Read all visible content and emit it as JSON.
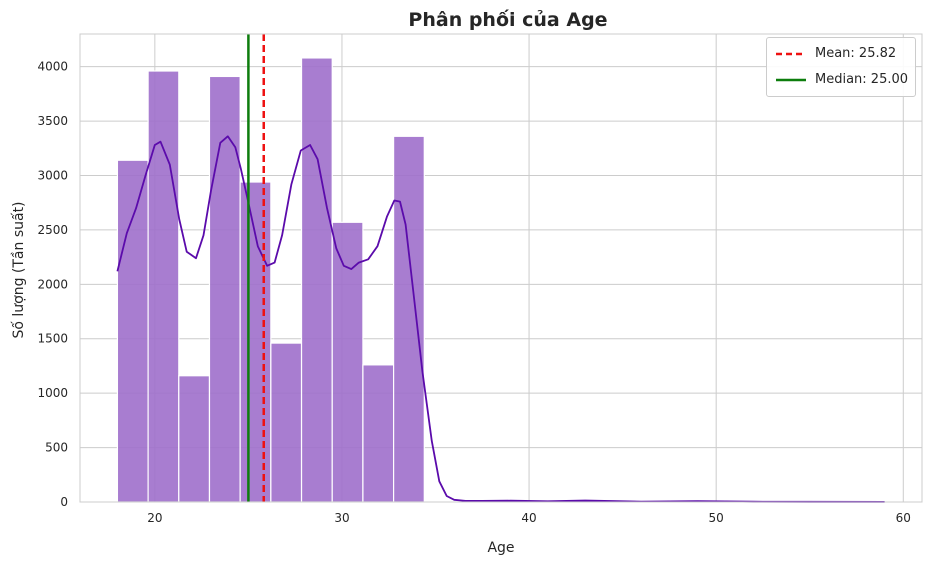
{
  "chart_data": {
    "type": "bar",
    "title": "Phân phối của Age",
    "xlabel": "Age",
    "ylabel": "Số lượng (Tần suất)",
    "xlim": [
      16,
      61
    ],
    "ylim": [
      0,
      4300
    ],
    "xticks": [
      20,
      30,
      40,
      50,
      60
    ],
    "yticks": [
      0,
      500,
      1000,
      1500,
      2000,
      2500,
      3000,
      3500,
      4000
    ],
    "grid": true,
    "bin_edges": [
      18,
      19.64,
      21.28,
      22.92,
      24.56,
      26.2,
      27.84,
      29.48,
      31.12,
      32.76,
      34.4
    ],
    "counts": [
      3140,
      3960,
      1160,
      3910,
      2940,
      1460,
      4080,
      2570,
      1260,
      3360
    ],
    "bar_color": "#9e6fcb",
    "kde": {
      "name": "KDE",
      "color": "#5b0bab",
      "x": [
        18,
        18.5,
        19,
        19.5,
        20,
        20.3,
        20.8,
        21.3,
        21.7,
        22.2,
        22.6,
        23,
        23.5,
        23.9,
        24.3,
        24.6,
        25,
        25.5,
        26,
        26.4,
        26.8,
        27.3,
        27.8,
        28.3,
        28.7,
        29.2,
        29.7,
        30.1,
        30.5,
        30.9,
        31.4,
        31.9,
        32.4,
        32.8,
        33.1,
        33.4,
        33.8,
        34.3,
        34.8,
        35.2,
        35.6,
        36,
        36.6,
        37.5,
        39,
        41,
        43,
        46,
        49,
        52,
        55,
        59
      ],
      "y": [
        2120,
        2470,
        2700,
        3000,
        3280,
        3310,
        3100,
        2600,
        2300,
        2240,
        2450,
        2860,
        3300,
        3360,
        3260,
        3060,
        2750,
        2350,
        2170,
        2200,
        2450,
        2920,
        3230,
        3280,
        3150,
        2700,
        2330,
        2170,
        2140,
        2200,
        2230,
        2350,
        2620,
        2770,
        2760,
        2550,
        1950,
        1200,
        560,
        190,
        55,
        20,
        10,
        10,
        12,
        6,
        14,
        4,
        8,
        3,
        2,
        1
      ]
    },
    "mean": {
      "value": 25.82,
      "label": "Mean: 25.82",
      "color": "#ee1111",
      "style": "dashed"
    },
    "median": {
      "value": 25.0,
      "label": "Median: 25.00",
      "color": "#0d7d0d",
      "style": "solid"
    },
    "legend_position": "top-right"
  }
}
